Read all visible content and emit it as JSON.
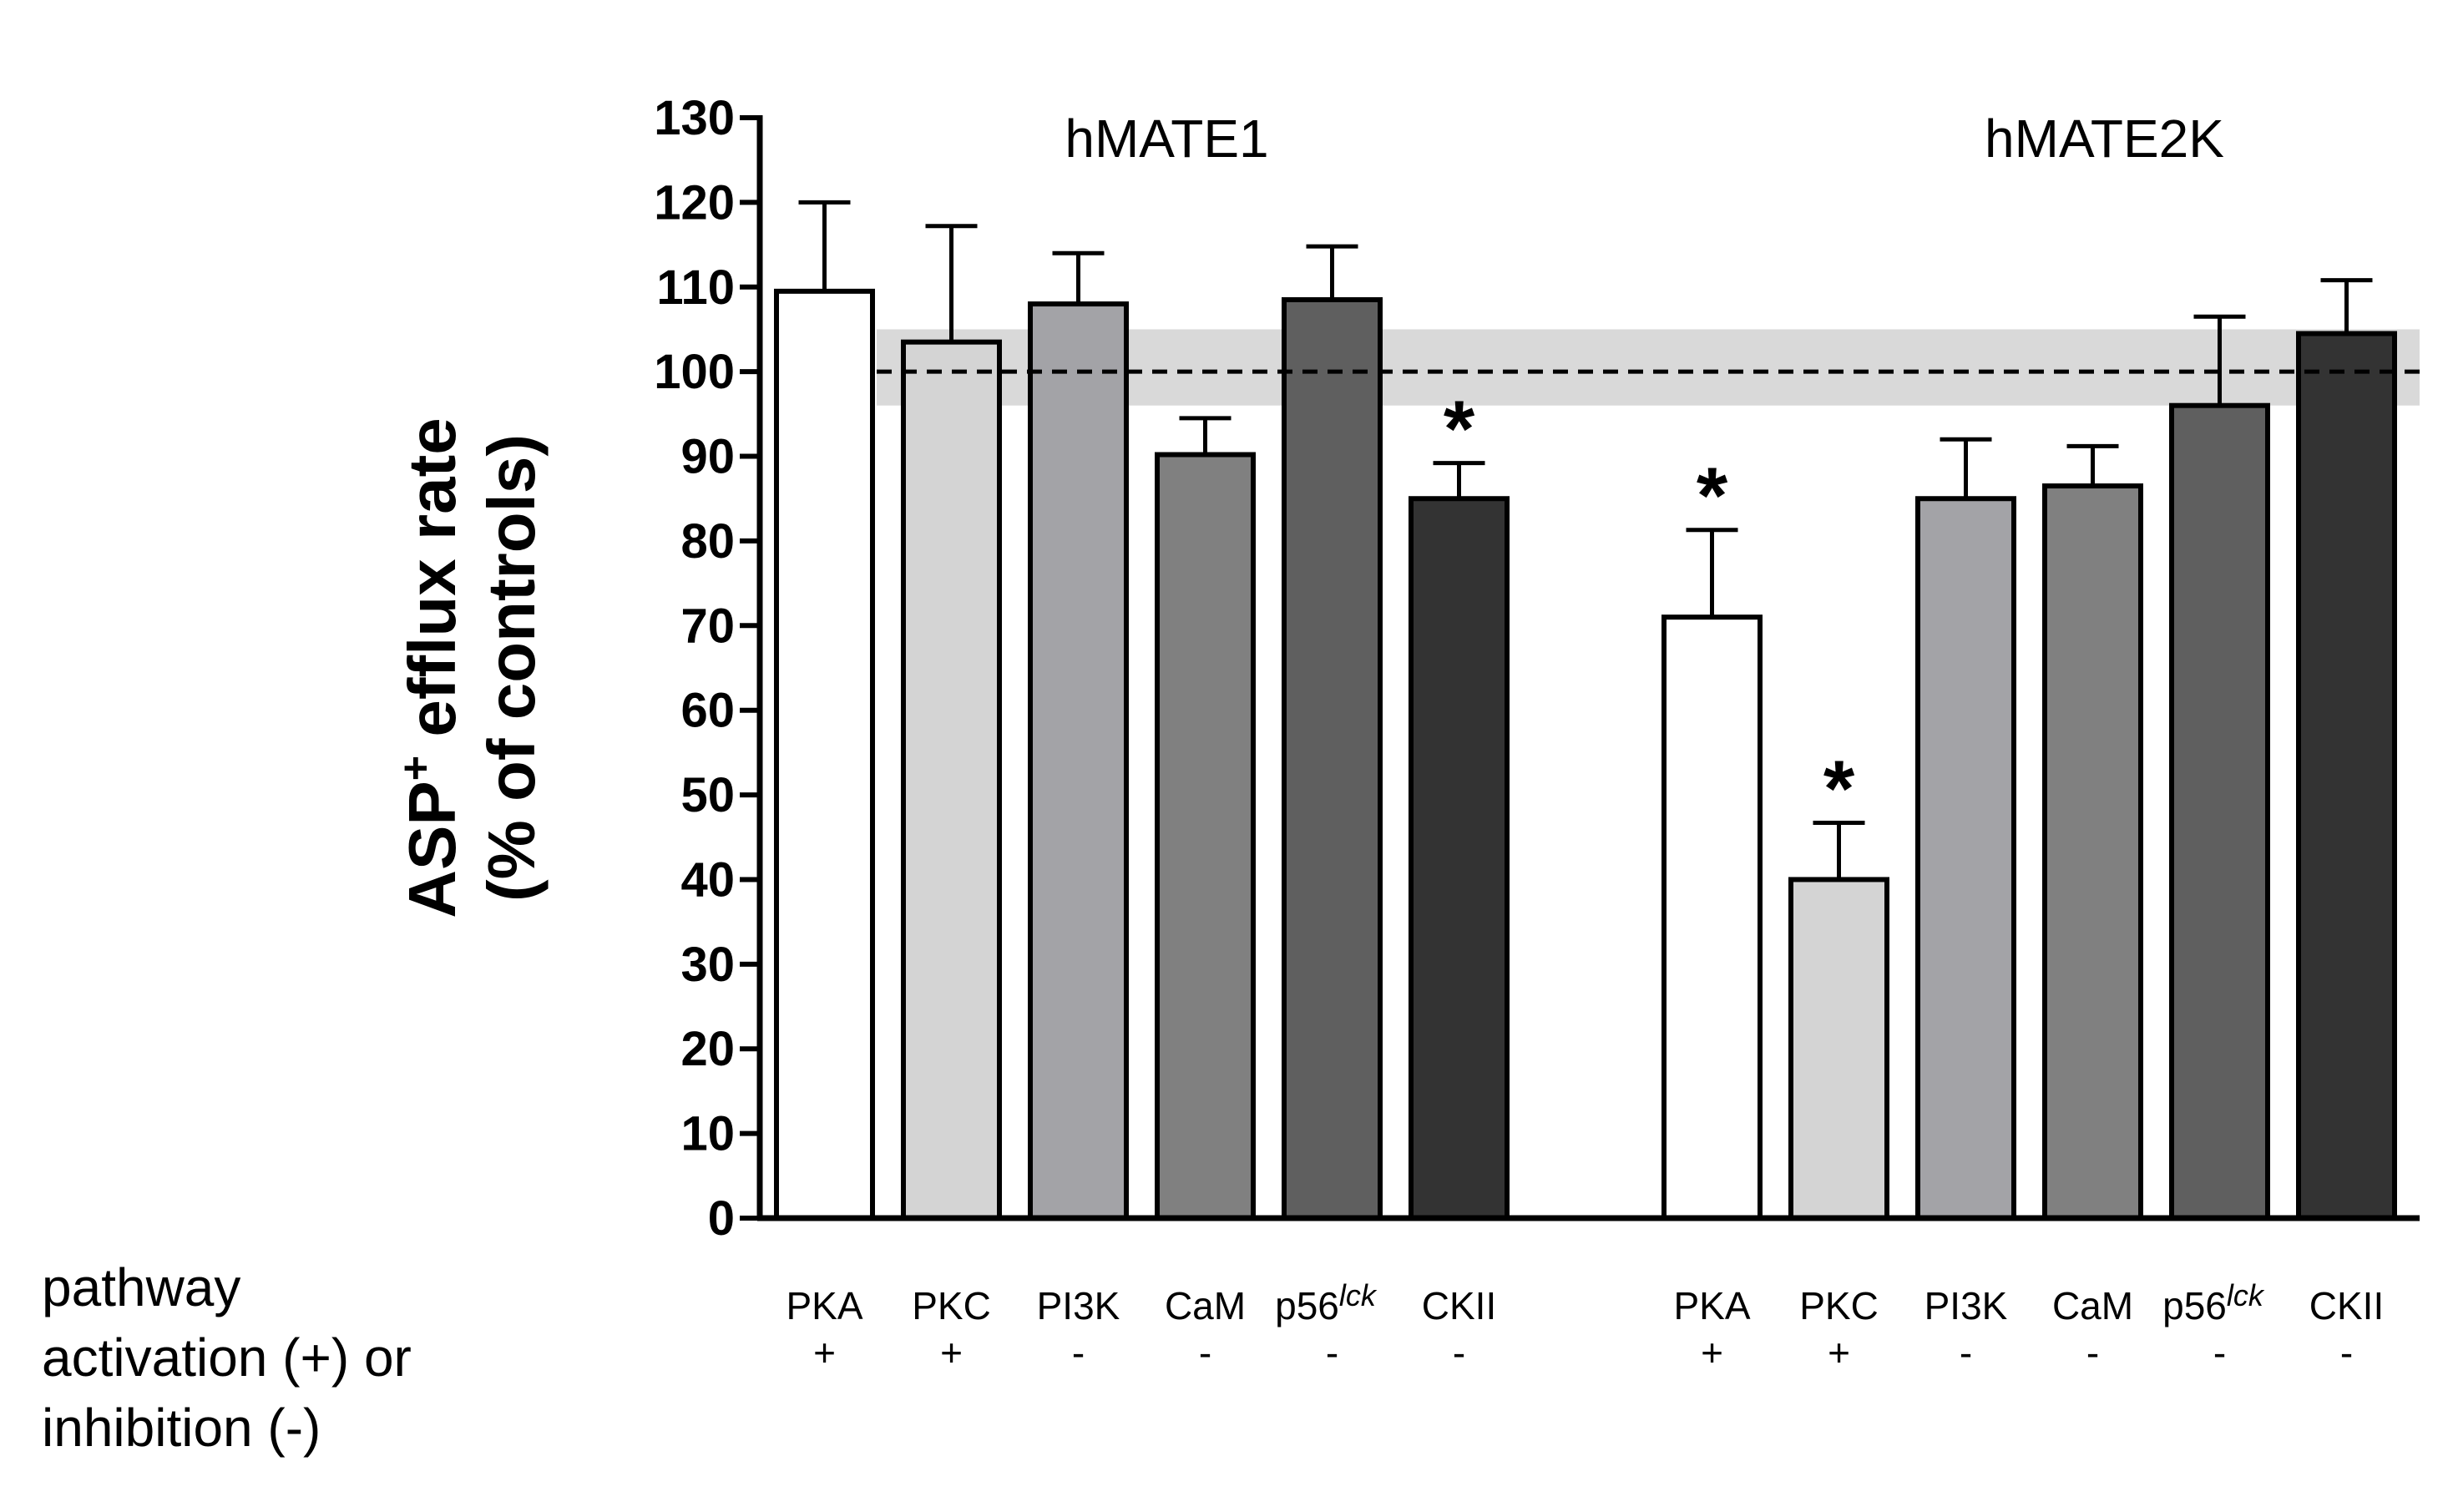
{
  "chart_data": {
    "type": "bar",
    "ylabel_line1_prefix": "ASP",
    "ylabel_line1_superscript": "+",
    "ylabel_line1_suffix": " efflux rate",
    "ylabel_line2": "(% of controls)",
    "ylim": [
      0,
      130
    ],
    "yticks": [
      0,
      10,
      20,
      30,
      40,
      50,
      60,
      70,
      80,
      90,
      100,
      110,
      120,
      130
    ],
    "control_line": 100,
    "control_band": [
      96,
      105
    ],
    "colors": {
      "PKA": "#ffffff",
      "PKC": "#d4d4d4",
      "PI3K": "#a3a3a7",
      "CaM": "#808080",
      "p56": "#5f5f5f",
      "CKII": "#333333"
    },
    "groups": [
      {
        "name": "hMATE1",
        "bars": [
          {
            "key": "PKA",
            "label": "PKA",
            "sign": "+",
            "value": 109.5,
            "error": 10.5,
            "significant": false
          },
          {
            "key": "PKC",
            "label": "PKC",
            "sign": "+",
            "value": 103.5,
            "error": 13.7,
            "significant": false
          },
          {
            "key": "PI3K",
            "label": "PI3K",
            "sign": "-",
            "value": 108,
            "error": 6,
            "significant": false
          },
          {
            "key": "CaM",
            "label": "CaM",
            "sign": "-",
            "value": 90.2,
            "error": 4.3,
            "significant": false
          },
          {
            "key": "p56",
            "label": "p56",
            "label_sup": "lck",
            "sign": "-",
            "value": 108.5,
            "error": 6.3,
            "significant": false
          },
          {
            "key": "CKII",
            "label": "CKII",
            "sign": "-",
            "value": 85,
            "error": 4.2,
            "significant": true
          }
        ]
      },
      {
        "name": "hMATE2K",
        "bars": [
          {
            "key": "PKA",
            "label": "PKA",
            "sign": "+",
            "value": 71,
            "error": 10.3,
            "significant": true
          },
          {
            "key": "PKC",
            "label": "PKC",
            "sign": "+",
            "value": 40,
            "error": 6.7,
            "significant": true
          },
          {
            "key": "PI3K",
            "label": "PI3K",
            "sign": "-",
            "value": 85,
            "error": 7,
            "significant": false
          },
          {
            "key": "CaM",
            "label": "CaM",
            "sign": "-",
            "value": 86.5,
            "error": 4.7,
            "significant": false
          },
          {
            "key": "p56",
            "label": "p56",
            "label_sup": "lck",
            "sign": "-",
            "value": 96,
            "error": 10.5,
            "significant": false
          },
          {
            "key": "CKII",
            "label": "CKII",
            "sign": "-",
            "value": 104.5,
            "error": 6.3,
            "significant": false
          }
        ]
      }
    ],
    "significance_marker": "*"
  },
  "side_label": {
    "line1": "pathway",
    "line2": "activation (+) or",
    "line3": "inhibition (-)"
  }
}
